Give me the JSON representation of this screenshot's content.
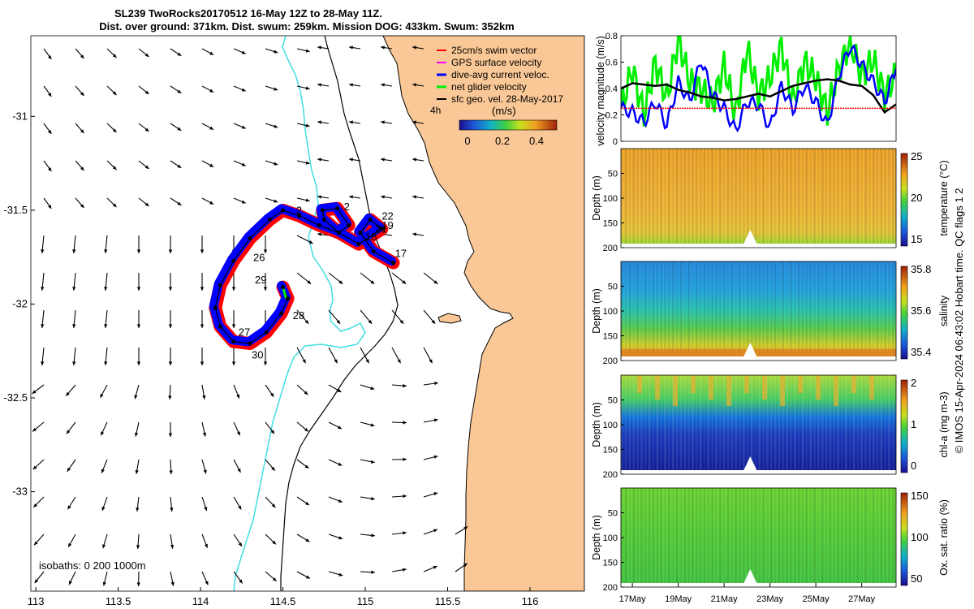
{
  "title": {
    "line1": "SL239 TwoRocks20170512 16-May 12Z to 28-May 11Z.",
    "line2": "Dist. over ground: 371km. Dist. swum: 259km. Mission DOG: 433km. Swum: 352km"
  },
  "colors": {
    "land": "#fac896",
    "coast": "#000000",
    "isobath200": "#40dde0",
    "isobath1000": "#000000",
    "swim": "#ff0000",
    "gps": "#ff00ff",
    "dac": "#0000ff",
    "net": "#00ee00",
    "geo": "#000000"
  },
  "map": {
    "lon_range": [
      112.97,
      116.33
    ],
    "lat_range": [
      -33.53,
      -30.57
    ],
    "x_ticks": [
      "113",
      "113.5",
      "114",
      "114.5",
      "115",
      "115.5",
      "116"
    ],
    "y_ticks": [
      "-31",
      "-31.5",
      "-32",
      "-32.5",
      "-33"
    ],
    "isobath_note": "isobaths: 0   200  1000m",
    "time_step": "4h",
    "legend": [
      {
        "key": "swim",
        "label": "25cm/s swim vector"
      },
      {
        "key": "gps",
        "label": "GPS surface velocity"
      },
      {
        "key": "dac",
        "label": "dive-avg current veloc."
      },
      {
        "key": "net",
        "label": "net glider velocity"
      },
      {
        "key": "geo",
        "label": "sfc geo. vel. 28-May-2017"
      }
    ],
    "colorbar": {
      "unit": "(m/s)",
      "ticks": [
        "0",
        "0.2",
        "0.4"
      ]
    },
    "day_labels": [
      {
        "text": "17",
        "lon": 115.18,
        "lat": -31.75
      },
      {
        "text": "18",
        "lon": 115.0,
        "lat": -31.66
      },
      {
        "text": "19",
        "lon": 115.1,
        "lat": -31.6
      },
      {
        "text": "21",
        "lon": 115.06,
        "lat": -31.62
      },
      {
        "text": "22",
        "lon": 115.1,
        "lat": -31.55
      },
      {
        "text": "2",
        "lon": 114.58,
        "lat": -31.52
      },
      {
        "text": "2",
        "lon": 114.87,
        "lat": -31.5
      },
      {
        "text": "26",
        "lon": 114.32,
        "lat": -31.77
      },
      {
        "text": "29",
        "lon": 114.33,
        "lat": -31.89
      },
      {
        "text": "27",
        "lon": 114.23,
        "lat": -32.17
      },
      {
        "text": "28",
        "lon": 114.56,
        "lat": -32.08
      },
      {
        "text": "30",
        "lon": 114.31,
        "lat": -32.29
      }
    ]
  },
  "time_axis": {
    "ticks": [
      "17May",
      "19May",
      "21May",
      "23May",
      "25May",
      "27May"
    ]
  },
  "velocity_panel": {
    "ylabel": "velocity magnitude (m/s)",
    "ylim": [
      0,
      0.8
    ],
    "y_ticks": [
      "0",
      "0.2",
      "0.4",
      "0.6",
      "0.8"
    ],
    "swim_speed": 0.25
  },
  "depth_panels": [
    {
      "key": "temperature",
      "ylabel": "Depth (m)",
      "cbar_label": "temperature (°C)",
      "cbar_ticks": [
        "25",
        "20",
        "15"
      ],
      "y_ticks": [
        "50",
        "100",
        "150",
        "200"
      ]
    },
    {
      "key": "salinity",
      "ylabel": "Depth (m)",
      "cbar_label": "salinity",
      "cbar_ticks": [
        "35.8",
        "35.6",
        "35.4"
      ],
      "y_ticks": [
        "50",
        "100",
        "150",
        "200"
      ]
    },
    {
      "key": "chla",
      "ylabel": "Depth (m)",
      "cbar_label": "chl-a (mg m-3)",
      "cbar_ticks": [
        "2",
        "1",
        "0"
      ],
      "y_ticks": [
        "50",
        "100",
        "150",
        "200"
      ]
    },
    {
      "key": "oxygen",
      "ylabel": "Depth (m)",
      "cbar_label": "Ox. sat. ratio (%)",
      "cbar_ticks": [
        "150",
        "100",
        "50"
      ],
      "y_ticks": [
        "50",
        "100",
        "150",
        "200"
      ]
    }
  ],
  "footer": "© IMOS 15-Apr-2024 06:43:02 Hobart time. QC flags 1  2",
  "chart_data": [
    {
      "type": "scatter",
      "title": "SL239 TwoRocks20170512 16-May 12Z to 28-May 11Z.",
      "xlabel": "",
      "ylabel": "",
      "xlim": [
        112.97,
        116.33
      ],
      "ylim": [
        -33.53,
        -30.57
      ],
      "series": [
        {
          "name": "glider track",
          "x": [
            115.17,
            115.05,
            114.97,
            115.03,
            115.1,
            114.96,
            114.84,
            114.75,
            114.74,
            114.83,
            114.9,
            114.84,
            114.72,
            114.6,
            114.5,
            114.42,
            114.3,
            114.2,
            114.12,
            114.09,
            114.12,
            114.2,
            114.3,
            114.4,
            114.49,
            114.53,
            114.5
          ],
          "y": [
            -31.78,
            -31.72,
            -31.62,
            -31.55,
            -31.6,
            -31.68,
            -31.62,
            -31.55,
            -31.5,
            -31.49,
            -31.58,
            -31.62,
            -31.58,
            -31.53,
            -31.5,
            -31.55,
            -31.65,
            -31.77,
            -31.9,
            -32.02,
            -32.12,
            -32.2,
            -32.21,
            -32.15,
            -32.05,
            -31.97,
            -31.91
          ]
        }
      ]
    },
    {
      "type": "line",
      "title": "velocity magnitude",
      "xlabel": "",
      "ylabel": "velocity magnitude (m/s)",
      "x": [
        16.5,
        17,
        17.5,
        18,
        18.5,
        19,
        19.5,
        20,
        20.5,
        21,
        21.5,
        22,
        22.5,
        23,
        23.5,
        24,
        24.5,
        25,
        25.5,
        26,
        26.5,
        27,
        27.5,
        28,
        28.5
      ],
      "ylim": [
        0,
        0.8
      ],
      "series": [
        {
          "name": "net glider velocity",
          "values": [
            0.25,
            0.55,
            0.2,
            0.6,
            0.32,
            0.78,
            0.45,
            0.4,
            0.28,
            0.58,
            0.2,
            0.7,
            0.35,
            0.48,
            0.72,
            0.3,
            0.6,
            0.48,
            0.22,
            0.55,
            0.75,
            0.5,
            0.62,
            0.35,
            0.5
          ]
        },
        {
          "name": "dive-avg current veloc.",
          "values": [
            0.25,
            0.22,
            0.14,
            0.3,
            0.12,
            0.45,
            0.3,
            0.62,
            0.35,
            0.25,
            0.08,
            0.3,
            0.28,
            0.1,
            0.42,
            0.24,
            0.42,
            0.3,
            0.12,
            0.5,
            0.72,
            0.58,
            0.45,
            0.3,
            0.55
          ]
        },
        {
          "name": "sfc geo. vel.",
          "values": [
            0.4,
            0.44,
            0.43,
            0.42,
            0.43,
            0.39,
            0.37,
            0.34,
            0.33,
            0.31,
            0.32,
            0.34,
            0.36,
            0.34,
            0.38,
            0.42,
            0.44,
            0.46,
            0.47,
            0.46,
            0.43,
            0.42,
            0.35,
            0.22,
            0.28
          ]
        },
        {
          "name": "25cm/s swim vector",
          "values": [
            0.25,
            0.25,
            0.25,
            0.25,
            0.25,
            0.25,
            0.25,
            0.25,
            0.25,
            0.25,
            0.25,
            0.25,
            0.25,
            0.25,
            0.25,
            0.25,
            0.25,
            0.25,
            0.25,
            0.25,
            0.25,
            0.25,
            0.25,
            0.25,
            0.25
          ]
        }
      ]
    },
    {
      "type": "heatmap",
      "title": "temperature",
      "ylabel": "Depth (m)",
      "ylim": [
        200,
        0
      ],
      "clim": [
        15,
        25
      ],
      "xlim": [
        16.5,
        28.5
      ]
    },
    {
      "type": "heatmap",
      "title": "salinity",
      "ylabel": "Depth (m)",
      "ylim": [
        200,
        0
      ],
      "clim": [
        35.3,
        35.9
      ],
      "xlim": [
        16.5,
        28.5
      ]
    },
    {
      "type": "heatmap",
      "title": "chl-a",
      "ylabel": "Depth (m)",
      "ylim": [
        200,
        0
      ],
      "clim": [
        0,
        2
      ],
      "xlim": [
        16.5,
        28.5
      ]
    },
    {
      "type": "heatmap",
      "title": "oxygen saturation",
      "ylabel": "Depth (m)",
      "ylim": [
        200,
        0
      ],
      "clim": [
        30,
        170
      ],
      "xlim": [
        16.5,
        28.5
      ]
    }
  ]
}
